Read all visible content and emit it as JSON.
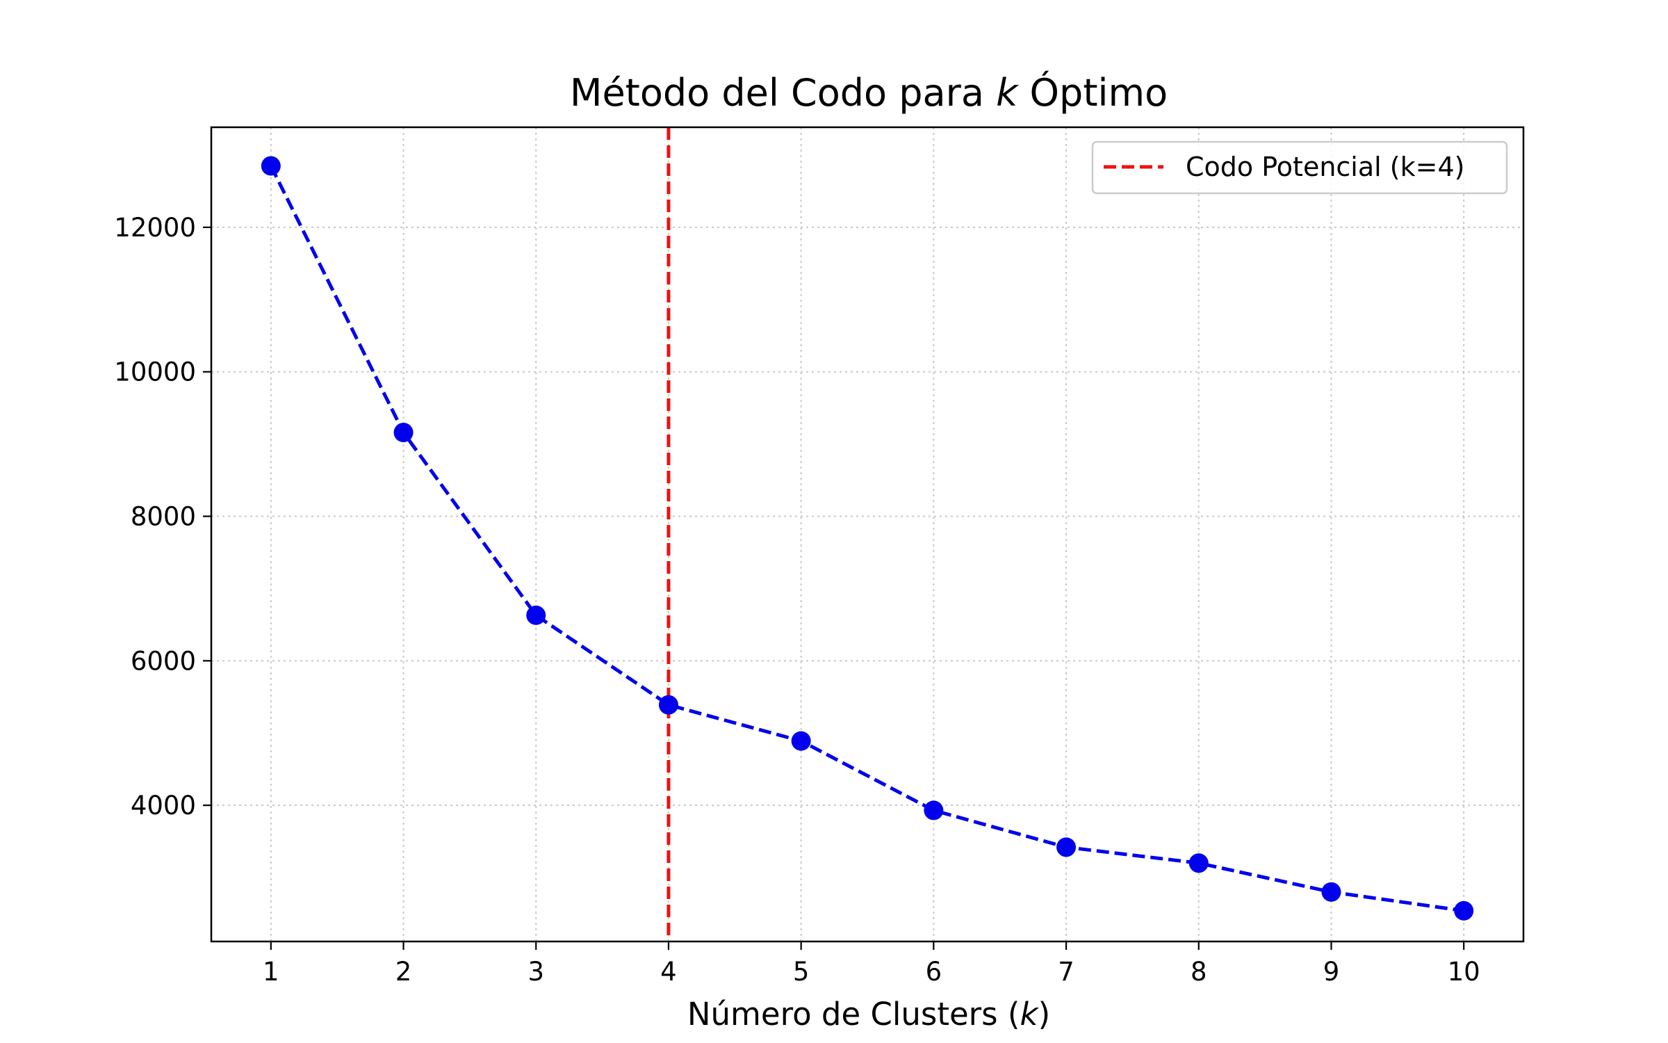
{
  "chart_data": {
    "type": "line",
    "title_parts": [
      "Método del Codo para ",
      "k",
      " Óptimo"
    ],
    "xlabel_parts": [
      "Número de Clusters (",
      "k",
      ")"
    ],
    "ylabel": "",
    "x": [
      1,
      2,
      3,
      4,
      5,
      6,
      7,
      8,
      9,
      10
    ],
    "series": [
      {
        "values": [
          12850,
          9160,
          6630,
          5390,
          4890,
          3930,
          3420,
          3200,
          2800,
          2540
        ],
        "color": "#0000ee",
        "line_style": "dashed",
        "marker": "circle"
      }
    ],
    "reference_line": {
      "orientation": "vertical",
      "x": 4,
      "color": "#ee1111",
      "line_style": "dashed",
      "label": "Codo Potencial (k=4)"
    },
    "x_ticks": [
      1,
      2,
      3,
      4,
      5,
      6,
      7,
      8,
      9,
      10
    ],
    "y_ticks": [
      4000,
      6000,
      8000,
      10000,
      12000
    ],
    "xlim": [
      0.55,
      10.45
    ],
    "ylim": [
      2115,
      13385
    ],
    "grid": true,
    "legend_position": "top-right"
  }
}
